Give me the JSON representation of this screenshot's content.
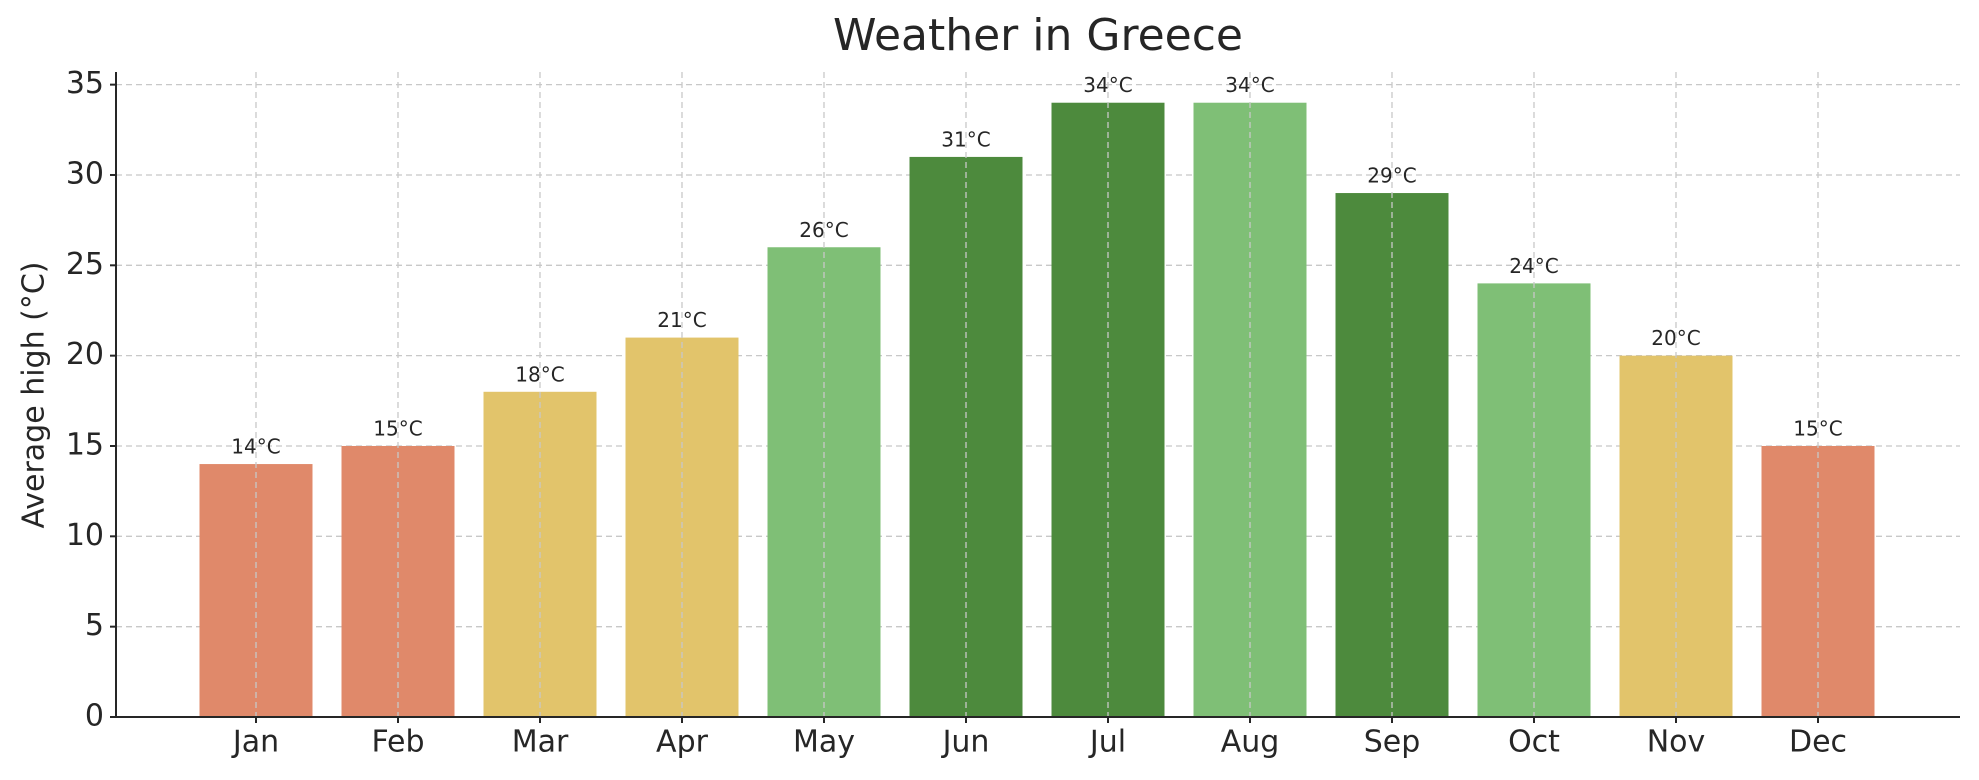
{
  "chart_data": {
    "type": "bar",
    "title": "Weather in Greece",
    "y_label": "Average high (°C)",
    "categories": [
      "Jan",
      "Feb",
      "Mar",
      "Apr",
      "May",
      "Jun",
      "Jul",
      "Aug",
      "Sep",
      "Oct",
      "Nov",
      "Dec"
    ],
    "values": [
      14,
      15,
      18,
      21,
      26,
      31,
      34,
      34,
      29,
      24,
      20,
      15
    ],
    "value_labels": [
      "14°C",
      "15°C",
      "18°C",
      "21°C",
      "26°C",
      "31°C",
      "34°C",
      "34°C",
      "29°C",
      "24°C",
      "20°C",
      "15°C"
    ],
    "colors": [
      "#e0896a",
      "#e0896a",
      "#e2c46b",
      "#e2c46b",
      "#7fbf76",
      "#4d8a3d",
      "#4d8a3d",
      "#7fbf76",
      "#4d8a3d",
      "#7fbf76",
      "#e2c46b",
      "#e0896a"
    ],
    "ylim": [
      0,
      35.7
    ],
    "yticks": [
      0,
      5,
      10,
      15,
      20,
      25,
      30,
      35
    ],
    "grid": true
  }
}
